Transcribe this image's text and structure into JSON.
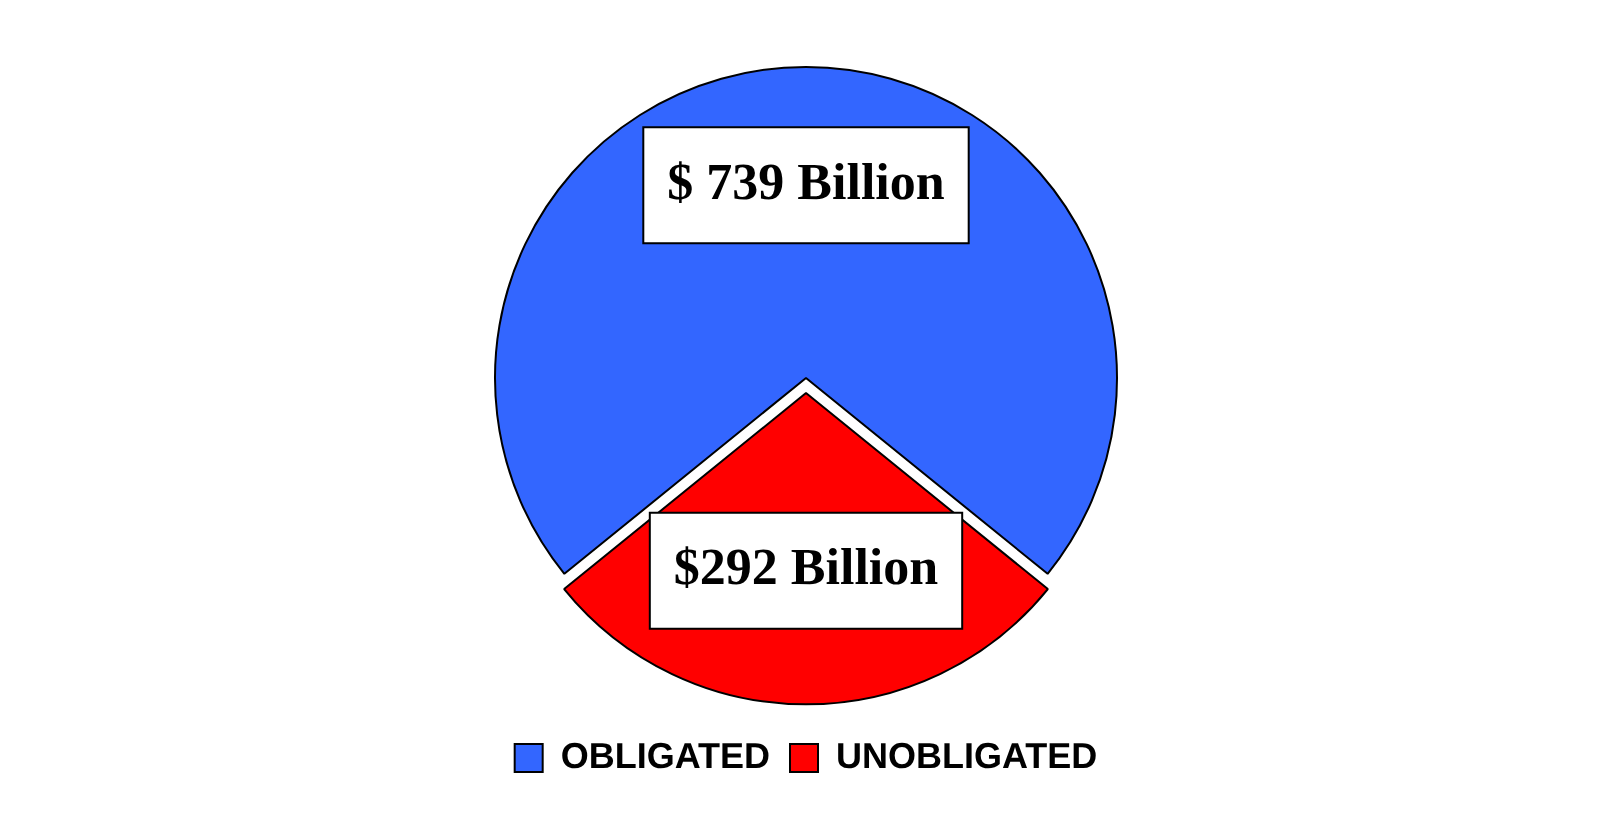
{
  "chart_data": {
    "type": "pie",
    "categories": [
      "OBLIGATED",
      "UNOBLIGATED"
    ],
    "values": [
      739,
      292
    ],
    "colors": [
      "#3366ff",
      "#ff0000"
    ],
    "value_labels": [
      "$ 739 Billion",
      "$292 Billion"
    ],
    "legend": "bottom"
  }
}
